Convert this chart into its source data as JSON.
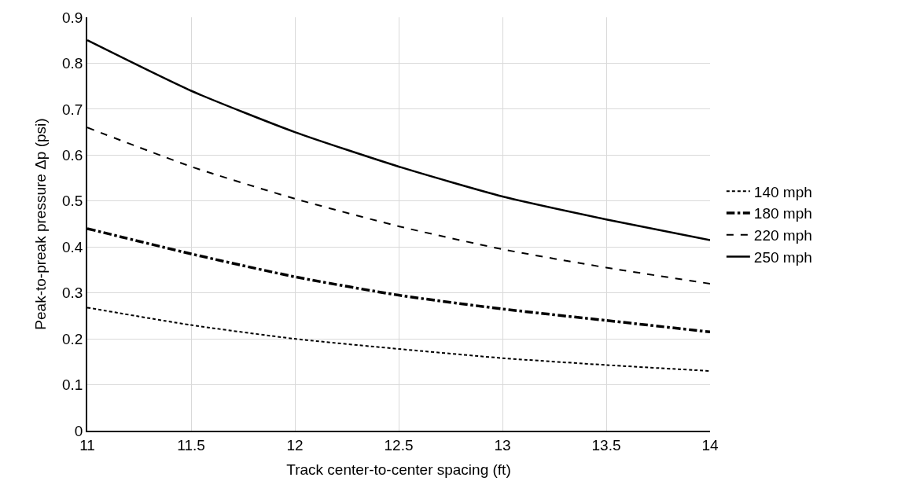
{
  "chart_data": {
    "type": "line",
    "xlabel": "Track center-to-center spacing (ft)",
    "ylabel": "Peak-to-preak pressure Δp (psi)",
    "x": [
      11,
      11.5,
      12,
      12.5,
      13,
      13.5,
      14
    ],
    "series": [
      {
        "name": "140 mph",
        "color": "#000000",
        "line_style": "dotted",
        "values": [
          0.268,
          0.23,
          0.2,
          0.178,
          0.158,
          0.143,
          0.13
        ]
      },
      {
        "name": "180 mph",
        "color": "#000000",
        "line_style": "dashdot",
        "values": [
          0.44,
          0.385,
          0.335,
          0.295,
          0.265,
          0.24,
          0.215
        ]
      },
      {
        "name": "220 mph",
        "color": "#000000",
        "line_style": "dashed",
        "values": [
          0.66,
          0.575,
          0.505,
          0.445,
          0.395,
          0.355,
          0.32
        ]
      },
      {
        "name": "250 mph",
        "color": "#000000",
        "line_style": "solid",
        "values": [
          0.85,
          0.74,
          0.65,
          0.575,
          0.51,
          0.46,
          0.415
        ]
      }
    ],
    "xlim": [
      11,
      14
    ],
    "xticks": [
      11,
      11.5,
      12,
      12.5,
      13,
      13.5,
      14
    ],
    "ylim": [
      0,
      0.9
    ],
    "yticks": [
      0,
      0.1,
      0.2,
      0.3,
      0.4,
      0.5,
      0.6,
      0.7,
      0.8,
      0.9
    ],
    "grid": true,
    "legend": "right",
    "marker": "none"
  }
}
